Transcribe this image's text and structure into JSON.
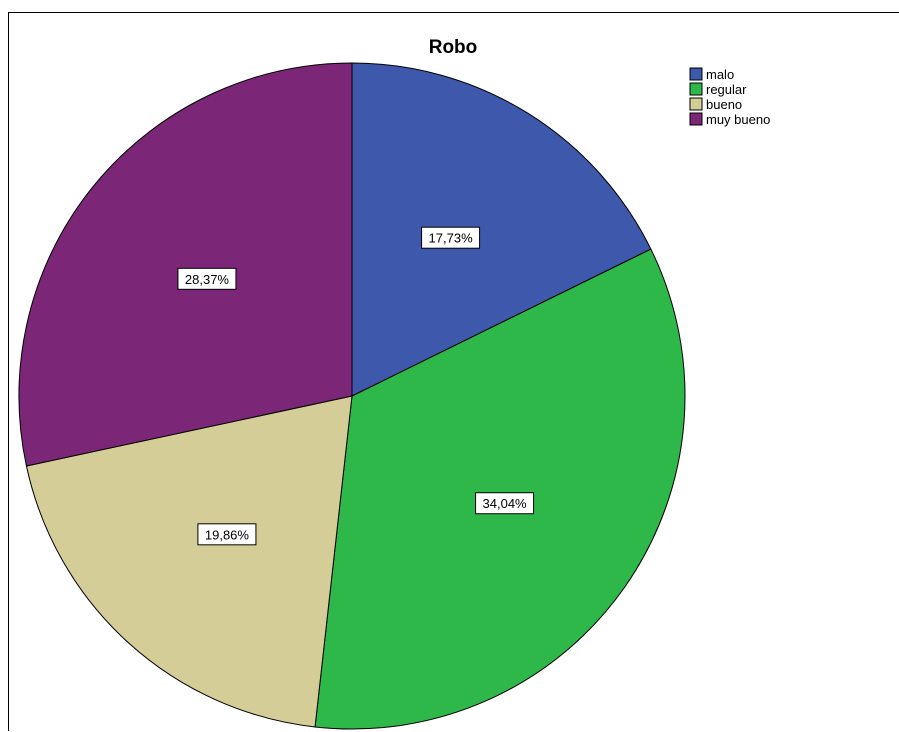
{
  "chart_data": {
    "type": "pie",
    "title": "Robo",
    "categories": [
      "malo",
      "regular",
      "bueno",
      "muy bueno"
    ],
    "values": [
      17.73,
      34.04,
      19.86,
      28.37
    ],
    "labels": [
      "17,73%",
      "34,04%",
      "19,86%",
      "28,37%"
    ],
    "colors": [
      "#3e58ac",
      "#2eb84a",
      "#d4cd97",
      "#7c2678"
    ],
    "start_angle": "12 o'clock",
    "direction": "clockwise",
    "legend": {
      "position": "top-right",
      "items": [
        "malo",
        "regular",
        "bueno",
        "muy bueno"
      ]
    }
  }
}
